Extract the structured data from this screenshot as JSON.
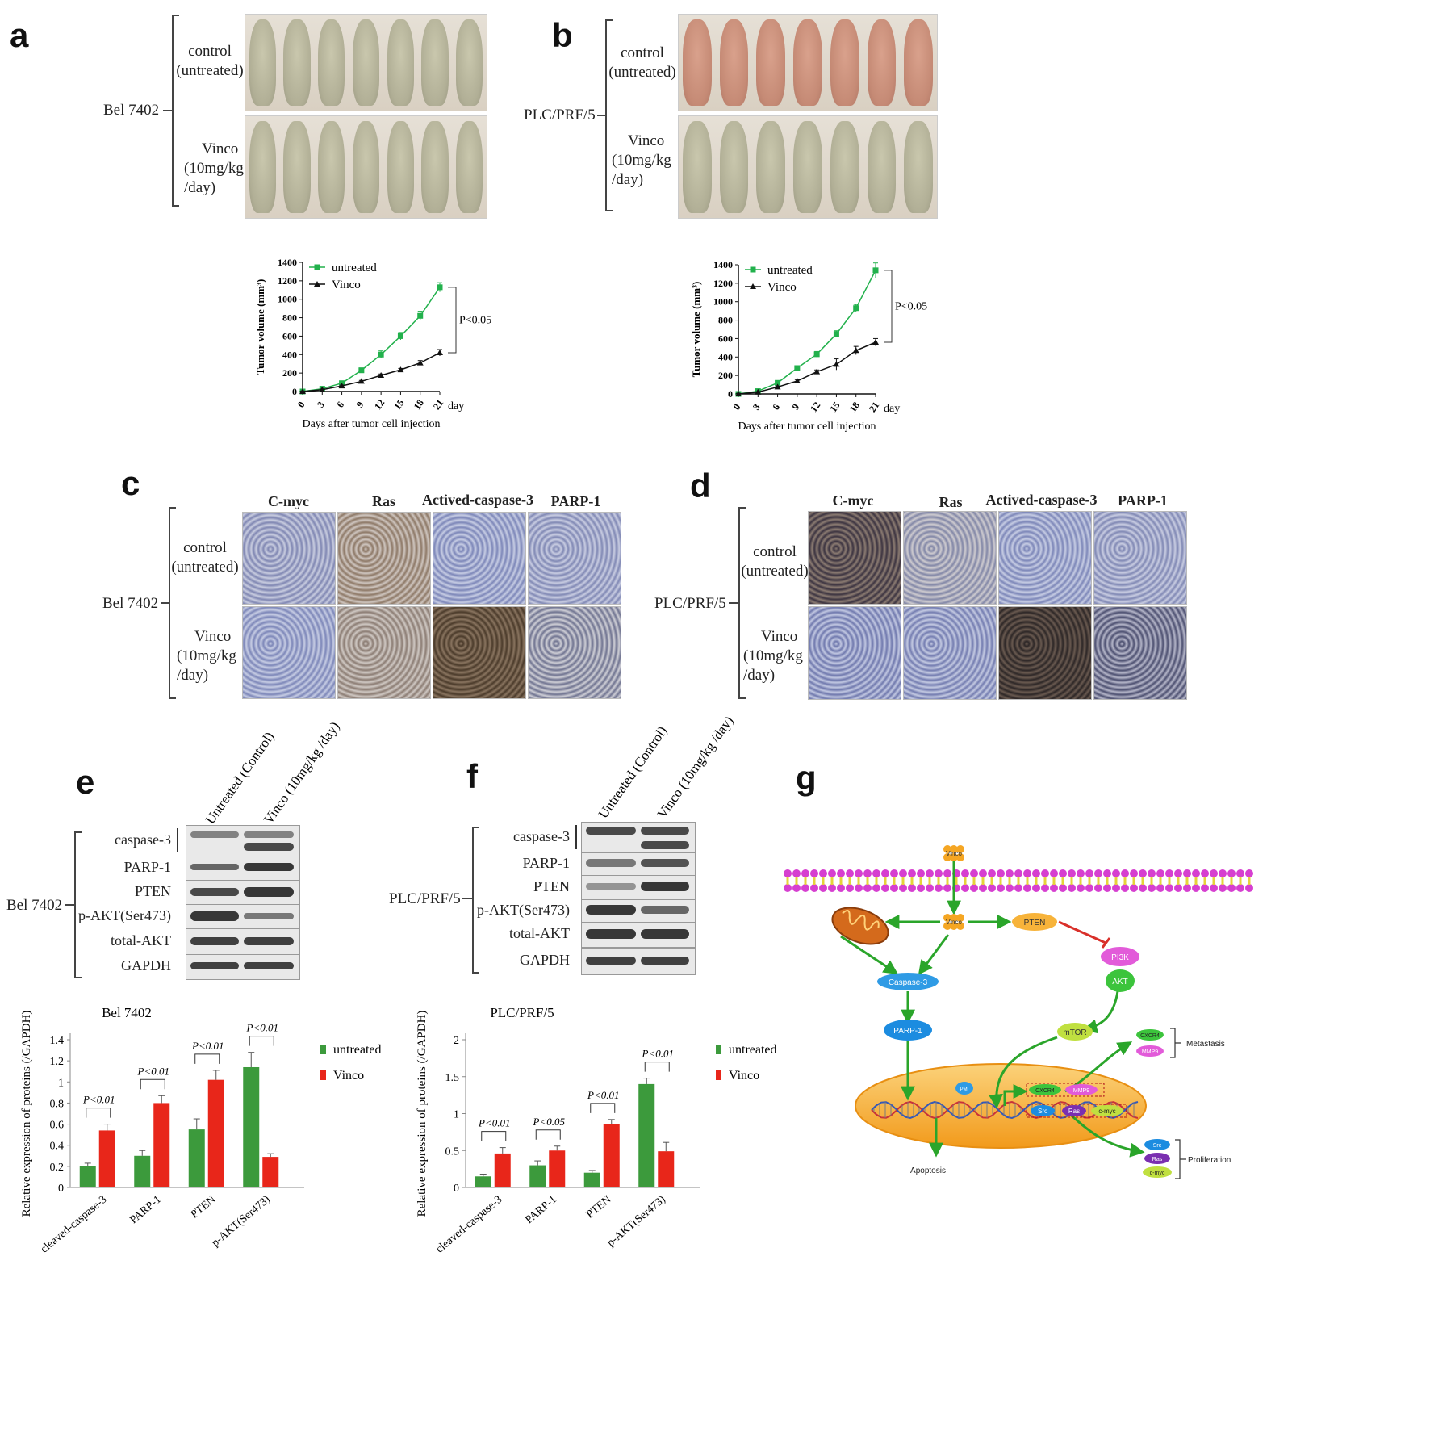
{
  "panel_labels": {
    "a": "a",
    "b": "b",
    "c": "c",
    "d": "d",
    "e": "e",
    "f": "f",
    "g": "g"
  },
  "panel_a": {
    "cell_line": "Bel 7402",
    "control_label": [
      "control",
      "(untreated)"
    ],
    "treat_label": [
      "Vinco",
      "(10mg/kg",
      "/day)"
    ]
  },
  "panel_b": {
    "cell_line": "PLC/PRF/5",
    "control_label": [
      "control",
      "(untreated)"
    ],
    "treat_label": [
      "Vinco",
      "(10mg/kg",
      "/day)"
    ]
  },
  "panel_c": {
    "cell_line": "Bel 7402",
    "columns": [
      "C-myc",
      "Ras",
      "Actived-caspase-3",
      "PARP-1"
    ],
    "control_label": [
      "control",
      "(untreated)"
    ],
    "treat_label": [
      "Vinco",
      "(10mg/kg",
      "/day)"
    ]
  },
  "panel_d": {
    "cell_line": "PLC/PRF/5",
    "columns": [
      "C-myc",
      "Ras",
      "Actived-caspase-3",
      "PARP-1"
    ],
    "control_label": [
      "control",
      "(untreated)"
    ],
    "treat_label": [
      "Vinco",
      "(10mg/kg",
      "/day)"
    ]
  },
  "panel_e": {
    "cell_line": "Bel 7402",
    "lanes": [
      "Untreated (Control)",
      "Vinco (10mg/kg /day)"
    ],
    "proteins": [
      "caspase-3",
      "PARP-1",
      "PTEN",
      "p-AKT(Ser473)",
      "total-AKT",
      "GAPDH"
    ]
  },
  "panel_f": {
    "cell_line": "PLC/PRF/5",
    "lanes": [
      "Untreated (Control)",
      "Vinco (10mg/kg /day)"
    ],
    "proteins": [
      "caspase-3",
      "PARP-1",
      "PTEN",
      "p-AKT(Ser473)",
      "total-AKT",
      "GAPDH"
    ]
  },
  "panel_g": {
    "nodes": {
      "vinco_top": "Vinco",
      "vinco_mid": "Vinco",
      "pten": "PTEN",
      "pi3k": "PI3K",
      "akt": "AKT",
      "caspase3": "Caspase-3",
      "parp1": "PARP-1",
      "mtor": "mTOR",
      "cxcr4": "CXCR4",
      "mmp9": "MMP9",
      "src": "Src",
      "ras": "Ras",
      "cmyc": "c-myc",
      "pmi": "PMI"
    },
    "outcomes": {
      "metastasis": "Metastasis",
      "proliferation": "Proliferation",
      "apoptosis": "Apoptosis"
    }
  },
  "chart_data": [
    {
      "type": "line",
      "panel": "a",
      "xlabel": "Days after tumor cell injection",
      "x_unit": "day",
      "ylabel": "Tumor volume (mm³)",
      "x": [
        0,
        3,
        6,
        9,
        12,
        15,
        18,
        21
      ],
      "ylim": [
        0,
        1400
      ],
      "yticks": [
        0,
        200,
        400,
        600,
        800,
        1000,
        1200,
        1400
      ],
      "series": [
        {
          "name": "untreated",
          "color": "#22b14c",
          "marker": "square",
          "values": [
            0,
            30,
            90,
            230,
            400,
            600,
            820,
            1130
          ],
          "errors": [
            5,
            10,
            15,
            25,
            40,
            40,
            50,
            50
          ]
        },
        {
          "name": "Vinco",
          "color": "#111111",
          "marker": "triangle",
          "values": [
            0,
            20,
            60,
            110,
            175,
            235,
            310,
            420
          ],
          "errors": [
            5,
            5,
            10,
            10,
            15,
            15,
            25,
            35
          ]
        }
      ],
      "annotation": "P<0.05",
      "legend": "top-left"
    },
    {
      "type": "line",
      "panel": "b",
      "xlabel": "Days after tumor cell injection",
      "x_unit": "day",
      "ylabel": "Tumor volume (mm³)",
      "x": [
        0,
        3,
        6,
        9,
        12,
        15,
        18,
        21
      ],
      "ylim": [
        0,
        1400
      ],
      "yticks": [
        0,
        200,
        400,
        600,
        800,
        1000,
        1200,
        1400
      ],
      "series": [
        {
          "name": "untreated",
          "color": "#22b14c",
          "marker": "square",
          "values": [
            0,
            30,
            120,
            280,
            430,
            650,
            930,
            1340
          ],
          "errors": [
            5,
            10,
            20,
            20,
            30,
            35,
            40,
            80
          ]
        },
        {
          "name": "Vinco",
          "color": "#111111",
          "marker": "triangle",
          "values": [
            0,
            20,
            75,
            140,
            240,
            320,
            470,
            560
          ],
          "errors": [
            5,
            5,
            10,
            15,
            20,
            60,
            45,
            40
          ]
        }
      ],
      "annotation": "P<0.05",
      "legend": "top-left"
    },
    {
      "type": "bar",
      "panel": "e",
      "title": "Bel 7402",
      "ylabel": "Relative expression of proteins (/GAPDH)",
      "categories": [
        "cleaved-caspase-3",
        "PARP-1",
        "PTEN",
        "p-AKT(Ser473)"
      ],
      "ylim": [
        0,
        1.4
      ],
      "yticks": [
        "0",
        "0.2",
        "0.4",
        "0.6",
        "0.8",
        "1",
        "1.2",
        "1.4"
      ],
      "series": [
        {
          "name": "untreated",
          "color": "#3c9a3c",
          "values": [
            0.2,
            0.3,
            0.55,
            1.14
          ],
          "errors": [
            0.03,
            0.05,
            0.1,
            0.14
          ]
        },
        {
          "name": "Vinco",
          "color": "#e8261a",
          "values": [
            0.54,
            0.8,
            1.02,
            0.29
          ],
          "errors": [
            0.06,
            0.07,
            0.09,
            0.03
          ]
        }
      ],
      "significance": [
        "P<0.01",
        "P<0.01",
        "P<0.01",
        "P<0.01"
      ],
      "legend": "right"
    },
    {
      "type": "bar",
      "panel": "f",
      "title": "PLC/PRF/5",
      "ylabel": "Relative expression of proteins (/GAPDH)",
      "categories": [
        "cleaved-caspase-3",
        "PARP-1",
        "PTEN",
        "p-AKT(Ser473)"
      ],
      "ylim": [
        0,
        2
      ],
      "yticks": [
        "0",
        "0.5",
        "1",
        "1.5",
        "2"
      ],
      "series": [
        {
          "name": "untreated",
          "color": "#3c9a3c",
          "values": [
            0.15,
            0.3,
            0.2,
            1.4
          ],
          "errors": [
            0.03,
            0.06,
            0.03,
            0.08
          ]
        },
        {
          "name": "Vinco",
          "color": "#e8261a",
          "values": [
            0.46,
            0.5,
            0.86,
            0.49
          ],
          "errors": [
            0.08,
            0.06,
            0.06,
            0.12
          ]
        }
      ],
      "significance": [
        "P<0.01",
        "P<0.05",
        "P<0.01",
        "P<0.01"
      ],
      "legend": "right"
    }
  ]
}
